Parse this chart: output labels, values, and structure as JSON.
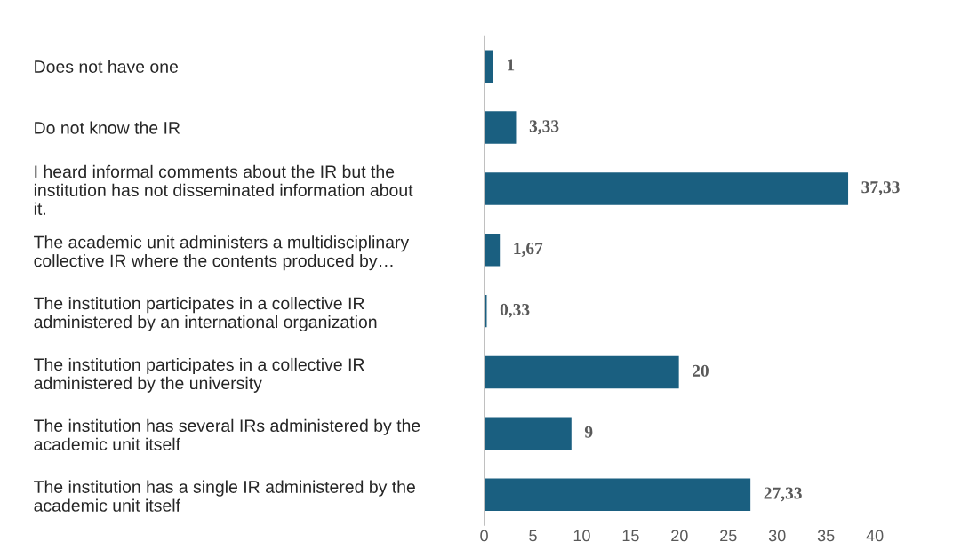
{
  "chart_data": {
    "type": "bar",
    "orientation": "horizontal",
    "categories": [
      "Does not have one",
      "Do not know the IR",
      "I heard informal comments about the IR but the\ninstitution has not disseminated information about\nit.",
      "The academic unit administers a multidisciplinary\ncollective IR where the contents produced by…",
      "The institution participates in a collective IR\nadministered by an international organization",
      "The institution participates in a collective IR\nadministered by the university",
      "The institution has several IRs administered by the\nacademic unit itself",
      "The institution has a single IR administered by the\nacademic unit itself"
    ],
    "values": [
      1,
      3.33,
      37.33,
      1.67,
      0.33,
      20,
      9,
      27.33
    ],
    "value_labels": [
      "1",
      "3,33",
      "37,33",
      "1,67",
      "0,33",
      "20",
      "9",
      "27,33"
    ],
    "color": "#1a5f80",
    "xlim": [
      0,
      40
    ],
    "xticks": [
      0,
      5,
      10,
      15,
      20,
      25,
      30,
      35,
      40
    ],
    "grid": false,
    "legend": false
  }
}
